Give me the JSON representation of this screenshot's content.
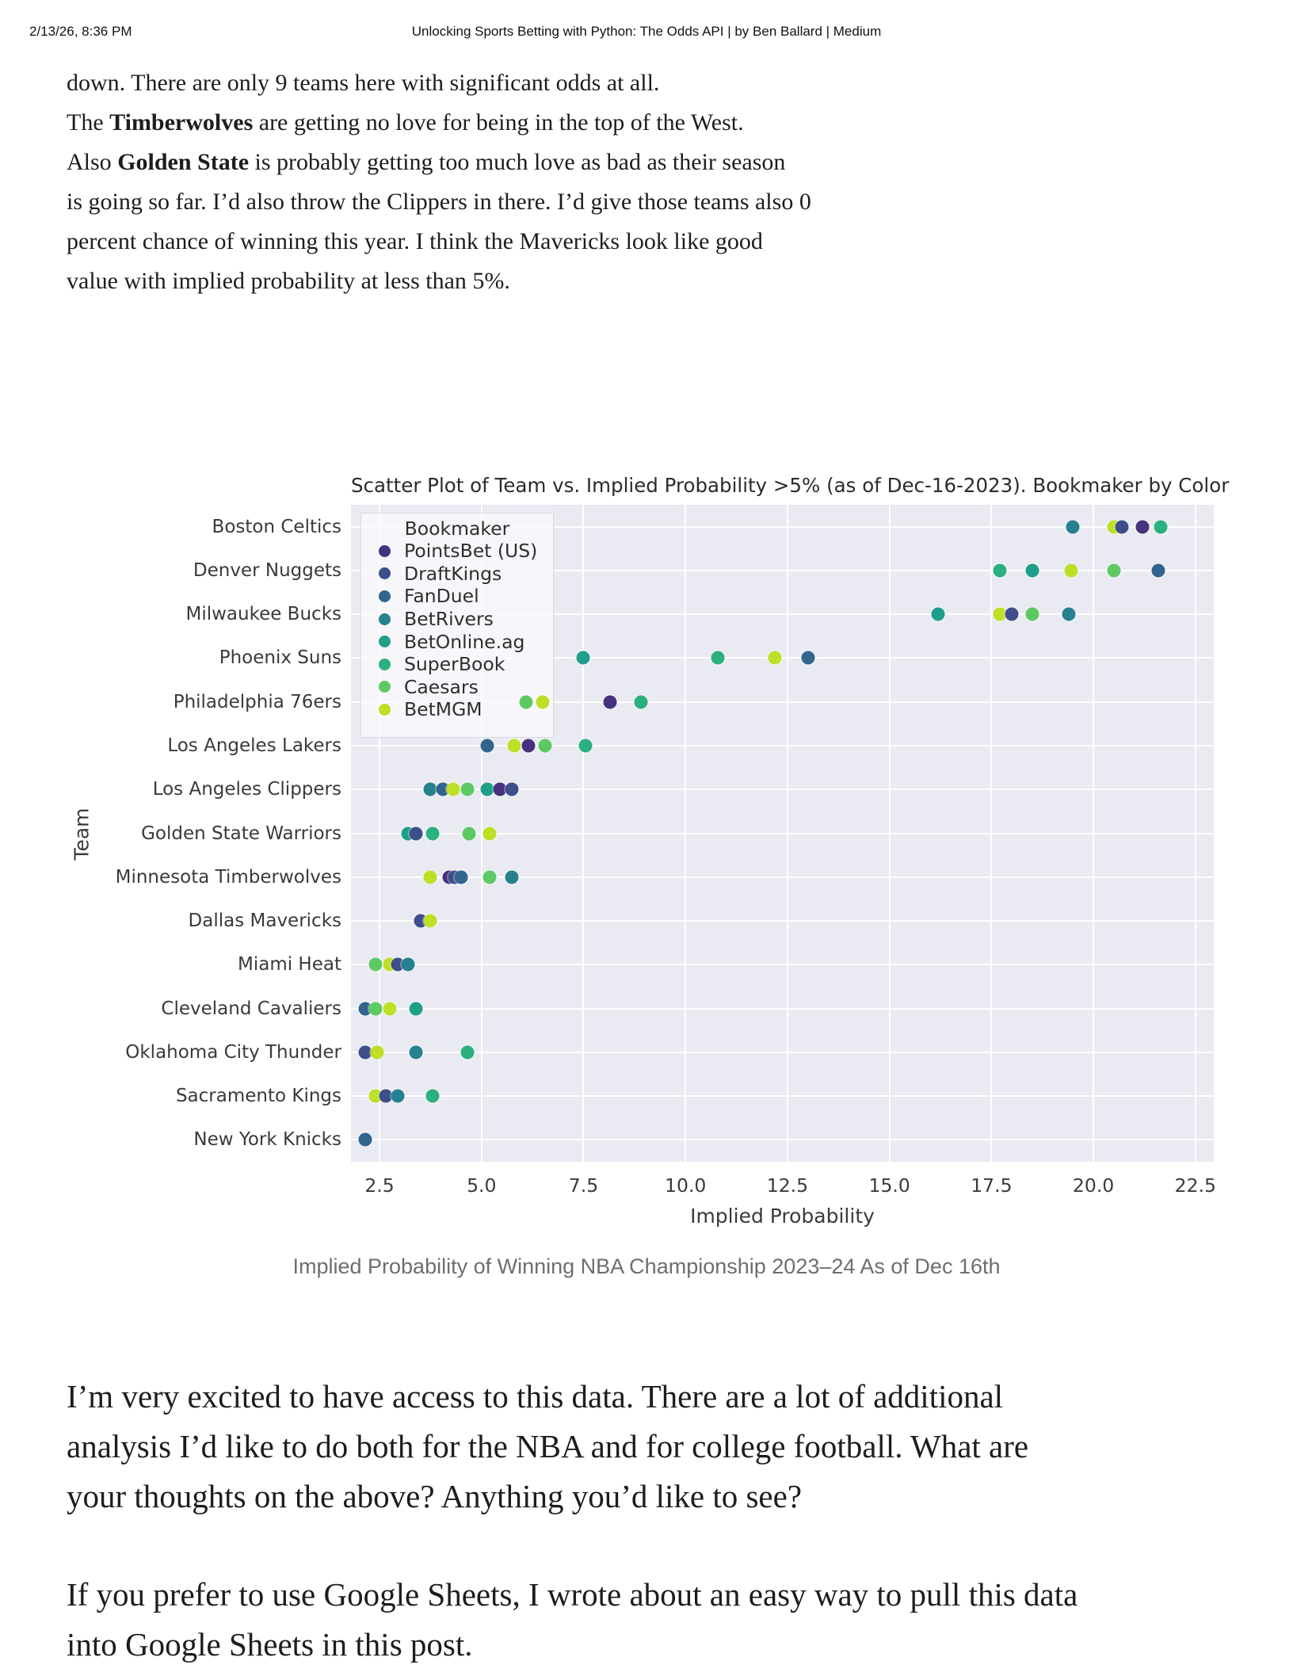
{
  "header": {
    "datetime": "2/13/26, 8:36 PM",
    "title": "Unlocking Sports Betting with Python: The Odds API | by Ben Ballard | Medium"
  },
  "article": {
    "p1": {
      "l1": "down. There are only 9 teams here with significant odds at all.",
      "l2_pre": "The ",
      "l2_bold": "Timberwolves",
      "l2_post": " are getting no love for being in the top of the West.",
      "l3_pre": "Also ",
      "l3_bold": "Golden State",
      "l3_post": " is probably getting too much love as bad as their season",
      "l4": "is going so far. I’d also throw the Clippers in there. I’d give those teams also 0",
      "l5": "percent chance of winning this year. I think the Mavericks look like good",
      "l6": "value with implied probability at less than 5%."
    },
    "caption": "Implied Probability of Winning NBA Championship 2023–24 As of Dec 16th",
    "p2": {
      "l1": "I’m very excited to have access to this data. There are a lot of additional",
      "l2": "analysis I’d like to do both for the NBA and for college football. What are",
      "l3": "your thoughts on the above? Anything you’d like to see?"
    },
    "p3": {
      "l1": "If you prefer to use Google Sheets, I wrote about an easy way to pull this data",
      "l2": "into Google Sheets in this post."
    }
  },
  "chart_data": {
    "type": "scatter",
    "title": "Scatter Plot of Team vs. Implied Probability >5% (as of Dec-16-2023). Bookmaker by Color",
    "xlabel": "Implied Probability",
    "ylabel": "Team",
    "grid": true,
    "plot_bg": "#e9eaf2",
    "xlim": [
      1.8,
      22.95
    ],
    "xticks": [
      "2.5",
      "5.0",
      "7.5",
      "10.0",
      "12.5",
      "15.0",
      "17.5",
      "20.0",
      "22.5"
    ],
    "xtick_values": [
      2.5,
      5.0,
      7.5,
      10.0,
      12.5,
      15.0,
      17.5,
      20.0,
      22.5
    ],
    "categories": [
      "Boston Celtics",
      "Denver Nuggets",
      "Milwaukee Bucks",
      "Phoenix Suns",
      "Philadelphia 76ers",
      "Los Angeles Lakers",
      "Los Angeles Clippers",
      "Golden State Warriors",
      "Minnesota Timberwolves",
      "Dallas Mavericks",
      "Miami Heat",
      "Cleveland Cavaliers",
      "Oklahoma City Thunder",
      "Sacramento Kings",
      "New York Knicks"
    ],
    "legend": {
      "title": "Bookmaker",
      "position": "upper left",
      "entries": [
        {
          "name": "PointsBet (US)",
          "color": "#46327e"
        },
        {
          "name": "DraftKings",
          "color": "#3d4e8a"
        },
        {
          "name": "FanDuel",
          "color": "#32648e"
        },
        {
          "name": "BetRivers",
          "color": "#27808e"
        },
        {
          "name": "BetOnline.ag",
          "color": "#1f9e89"
        },
        {
          "name": "SuperBook",
          "color": "#2bb07f"
        },
        {
          "name": "Caesars",
          "color": "#5ec962"
        },
        {
          "name": "BetMGM",
          "color": "#bddf26"
        }
      ]
    },
    "points": [
      {
        "team": "Boston Celtics",
        "bookmaker": "BetRivers",
        "x": 19.5
      },
      {
        "team": "Boston Celtics",
        "bookmaker": "BetMGM",
        "x": 20.5
      },
      {
        "team": "Boston Celtics",
        "bookmaker": "DraftKings",
        "x": 20.7
      },
      {
        "team": "Boston Celtics",
        "bookmaker": "PointsBet (US)",
        "x": 21.2
      },
      {
        "team": "Boston Celtics",
        "bookmaker": "SuperBook",
        "x": 21.65
      },
      {
        "team": "Denver Nuggets",
        "bookmaker": "SuperBook",
        "x": 17.7
      },
      {
        "team": "Denver Nuggets",
        "bookmaker": "BetOnline.ag",
        "x": 18.5
      },
      {
        "team": "Denver Nuggets",
        "bookmaker": "BetMGM",
        "x": 19.45
      },
      {
        "team": "Denver Nuggets",
        "bookmaker": "Caesars",
        "x": 20.5
      },
      {
        "team": "Denver Nuggets",
        "bookmaker": "FanDuel",
        "x": 21.6
      },
      {
        "team": "Milwaukee Bucks",
        "bookmaker": "BetOnline.ag",
        "x": 16.2
      },
      {
        "team": "Milwaukee Bucks",
        "bookmaker": "BetMGM",
        "x": 17.7
      },
      {
        "team": "Milwaukee Bucks",
        "bookmaker": "DraftKings",
        "x": 18.0
      },
      {
        "team": "Milwaukee Bucks",
        "bookmaker": "Caesars",
        "x": 18.5
      },
      {
        "team": "Milwaukee Bucks",
        "bookmaker": "BetRivers",
        "x": 19.4
      },
      {
        "team": "Phoenix Suns",
        "bookmaker": "BetOnline.ag",
        "x": 7.5
      },
      {
        "team": "Phoenix Suns",
        "bookmaker": "SuperBook",
        "x": 10.8
      },
      {
        "team": "Phoenix Suns",
        "bookmaker": "BetMGM",
        "x": 12.2
      },
      {
        "team": "Phoenix Suns",
        "bookmaker": "FanDuel",
        "x": 13.0
      },
      {
        "team": "Philadelphia 76ers",
        "bookmaker": "Caesars",
        "x": 6.1
      },
      {
        "team": "Philadelphia 76ers",
        "bookmaker": "BetMGM",
        "x": 6.5
      },
      {
        "team": "Philadelphia 76ers",
        "bookmaker": "PointsBet (US)",
        "x": 8.15
      },
      {
        "team": "Philadelphia 76ers",
        "bookmaker": "SuperBook",
        "x": 8.9
      },
      {
        "team": "Los Angeles Lakers",
        "bookmaker": "FanDuel",
        "x": 5.15
      },
      {
        "team": "Los Angeles Lakers",
        "bookmaker": "BetMGM",
        "x": 5.8
      },
      {
        "team": "Los Angeles Lakers",
        "bookmaker": "PointsBet (US)",
        "x": 6.15
      },
      {
        "team": "Los Angeles Lakers",
        "bookmaker": "Caesars",
        "x": 6.55
      },
      {
        "team": "Los Angeles Lakers",
        "bookmaker": "SuperBook",
        "x": 7.55
      },
      {
        "team": "Los Angeles Clippers",
        "bookmaker": "BetRivers",
        "x": 3.75
      },
      {
        "team": "Los Angeles Clippers",
        "bookmaker": "FanDuel",
        "x": 4.05
      },
      {
        "team": "Los Angeles Clippers",
        "bookmaker": "BetMGM",
        "x": 4.3
      },
      {
        "team": "Los Angeles Clippers",
        "bookmaker": "Caesars",
        "x": 4.65
      },
      {
        "team": "Los Angeles Clippers",
        "bookmaker": "BetOnline.ag",
        "x": 5.15
      },
      {
        "team": "Los Angeles Clippers",
        "bookmaker": "PointsBet (US)",
        "x": 5.45
      },
      {
        "team": "Los Angeles Clippers",
        "bookmaker": "DraftKings",
        "x": 5.75
      },
      {
        "team": "Golden State Warriors",
        "bookmaker": "BetOnline.ag",
        "x": 3.2
      },
      {
        "team": "Golden State Warriors",
        "bookmaker": "DraftKings",
        "x": 3.4
      },
      {
        "team": "Golden State Warriors",
        "bookmaker": "SuperBook",
        "x": 3.8
      },
      {
        "team": "Golden State Warriors",
        "bookmaker": "Caesars",
        "x": 4.7
      },
      {
        "team": "Golden State Warriors",
        "bookmaker": "BetMGM",
        "x": 5.2
      },
      {
        "team": "Minnesota Timberwolves",
        "bookmaker": "BetMGM",
        "x": 3.75
      },
      {
        "team": "Minnesota Timberwolves",
        "bookmaker": "PointsBet (US)",
        "x": 4.2
      },
      {
        "team": "Minnesota Timberwolves",
        "bookmaker": "DraftKings",
        "x": 4.35
      },
      {
        "team": "Minnesota Timberwolves",
        "bookmaker": "FanDuel",
        "x": 4.5
      },
      {
        "team": "Minnesota Timberwolves",
        "bookmaker": "Caesars",
        "x": 5.2
      },
      {
        "team": "Minnesota Timberwolves",
        "bookmaker": "BetRivers",
        "x": 5.75
      },
      {
        "team": "Dallas Mavericks",
        "bookmaker": "DraftKings",
        "x": 3.5
      },
      {
        "team": "Dallas Mavericks",
        "bookmaker": "BetMGM",
        "x": 3.75
      },
      {
        "team": "Miami Heat",
        "bookmaker": "Caesars",
        "x": 2.4
      },
      {
        "team": "Miami Heat",
        "bookmaker": "BetMGM",
        "x": 2.75
      },
      {
        "team": "Miami Heat",
        "bookmaker": "DraftKings",
        "x": 2.95
      },
      {
        "team": "Miami Heat",
        "bookmaker": "BetRivers",
        "x": 3.2
      },
      {
        "team": "Cleveland Cavaliers",
        "bookmaker": "FanDuel",
        "x": 2.15
      },
      {
        "team": "Cleveland Cavaliers",
        "bookmaker": "Caesars",
        "x": 2.4
      },
      {
        "team": "Cleveland Cavaliers",
        "bookmaker": "BetMGM",
        "x": 2.75
      },
      {
        "team": "Cleveland Cavaliers",
        "bookmaker": "BetOnline.ag",
        "x": 3.4
      },
      {
        "team": "Oklahoma City Thunder",
        "bookmaker": "DraftKings",
        "x": 2.15
      },
      {
        "team": "Oklahoma City Thunder",
        "bookmaker": "BetMGM",
        "x": 2.45
      },
      {
        "team": "Oklahoma City Thunder",
        "bookmaker": "BetRivers",
        "x": 3.4
      },
      {
        "team": "Oklahoma City Thunder",
        "bookmaker": "SuperBook",
        "x": 4.65
      },
      {
        "team": "Sacramento Kings",
        "bookmaker": "BetMGM",
        "x": 2.4
      },
      {
        "team": "Sacramento Kings",
        "bookmaker": "DraftKings",
        "x": 2.65
      },
      {
        "team": "Sacramento Kings",
        "bookmaker": "BetRivers",
        "x": 2.95
      },
      {
        "team": "Sacramento Kings",
        "bookmaker": "SuperBook",
        "x": 3.8
      },
      {
        "team": "New York Knicks",
        "bookmaker": "FanDuel",
        "x": 2.15
      }
    ]
  }
}
